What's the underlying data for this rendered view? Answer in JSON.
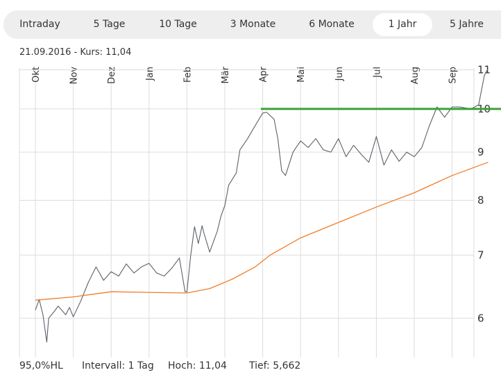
{
  "tabs": [
    {
      "label": "Intraday",
      "active": false
    },
    {
      "label": "5 Tage",
      "active": false
    },
    {
      "label": "10 Tage",
      "active": false
    },
    {
      "label": "3 Monate",
      "active": false
    },
    {
      "label": "6 Monate",
      "active": false
    },
    {
      "label": "1 Jahr",
      "active": true
    },
    {
      "label": "5 Jahre",
      "active": false
    }
  ],
  "info_line": "21.09.2016  -  Kurs: 11,04",
  "footer": {
    "hl": "95,0%HL",
    "interval": "Intervall: 1 Tag",
    "hoch": "Hoch:  11,04",
    "tief": "Tief:  5,662"
  },
  "colors": {
    "price_line": "#5a6068",
    "moving_average": "#f07d28",
    "resistance_line": "#3aa03a",
    "grid": "#dddddd",
    "tabbar_bg": "#eeeeef"
  },
  "chart_data": {
    "type": "line",
    "x_ticks": [
      "Okt",
      "Nov",
      "Dez",
      "Jan",
      "Feb",
      "Mär",
      "Apr",
      "Mai",
      "Jun",
      "Jul",
      "Aug",
      "Sep"
    ],
    "y_ticks": [
      6,
      7,
      8,
      9,
      10,
      11
    ],
    "y_scale": "log",
    "ylim": [
      5.45,
      11.05
    ],
    "grid": true,
    "series": [
      {
        "role": "price",
        "points": [
          [
            0,
            6.12
          ],
          [
            0.1,
            6.28
          ],
          [
            0.2,
            6.05
          ],
          [
            0.3,
            5.66
          ],
          [
            0.35,
            6.0
          ],
          [
            0.5,
            6.1
          ],
          [
            0.6,
            6.18
          ],
          [
            0.8,
            6.05
          ],
          [
            0.9,
            6.16
          ],
          [
            1.0,
            6.02
          ],
          [
            1.2,
            6.26
          ],
          [
            1.4,
            6.55
          ],
          [
            1.6,
            6.8
          ],
          [
            1.8,
            6.58
          ],
          [
            2.0,
            6.72
          ],
          [
            2.2,
            6.65
          ],
          [
            2.4,
            6.85
          ],
          [
            2.6,
            6.7
          ],
          [
            2.8,
            6.8
          ],
          [
            3.0,
            6.86
          ],
          [
            3.2,
            6.7
          ],
          [
            3.4,
            6.65
          ],
          [
            3.6,
            6.78
          ],
          [
            3.8,
            6.95
          ],
          [
            3.95,
            6.4
          ],
          [
            4.0,
            6.4
          ],
          [
            4.1,
            7.0
          ],
          [
            4.2,
            7.5
          ],
          [
            4.3,
            7.2
          ],
          [
            4.4,
            7.52
          ],
          [
            4.45,
            7.38
          ],
          [
            4.6,
            7.05
          ],
          [
            4.8,
            7.42
          ],
          [
            4.9,
            7.7
          ],
          [
            5.0,
            7.9
          ],
          [
            5.1,
            8.3
          ],
          [
            5.3,
            8.55
          ],
          [
            5.4,
            9.05
          ],
          [
            5.6,
            9.3
          ],
          [
            5.8,
            9.6
          ],
          [
            6.0,
            9.9
          ],
          [
            6.1,
            9.92
          ],
          [
            6.3,
            9.75
          ],
          [
            6.4,
            9.3
          ],
          [
            6.5,
            8.6
          ],
          [
            6.6,
            8.5
          ],
          [
            6.8,
            9.0
          ],
          [
            7.0,
            9.25
          ],
          [
            7.2,
            9.1
          ],
          [
            7.4,
            9.3
          ],
          [
            7.6,
            9.05
          ],
          [
            7.8,
            9.0
          ],
          [
            8.0,
            9.3
          ],
          [
            8.2,
            8.9
          ],
          [
            8.4,
            9.15
          ],
          [
            8.6,
            8.95
          ],
          [
            8.8,
            8.78
          ],
          [
            9.0,
            9.35
          ],
          [
            9.2,
            8.72
          ],
          [
            9.4,
            9.05
          ],
          [
            9.6,
            8.8
          ],
          [
            9.8,
            9.0
          ],
          [
            10.0,
            8.9
          ],
          [
            10.2,
            9.1
          ],
          [
            10.4,
            9.6
          ],
          [
            10.6,
            10.05
          ],
          [
            10.8,
            9.8
          ],
          [
            11.0,
            10.05
          ],
          [
            11.2,
            10.05
          ],
          [
            11.5,
            10.0
          ],
          [
            11.7,
            10.1
          ],
          [
            11.85,
            10.85
          ],
          [
            11.95,
            11.04
          ]
        ]
      },
      {
        "role": "moving-average",
        "points": [
          [
            0,
            6.27
          ],
          [
            1.0,
            6.32
          ],
          [
            2.0,
            6.4
          ],
          [
            3.0,
            6.39
          ],
          [
            4.0,
            6.38
          ],
          [
            4.6,
            6.45
          ],
          [
            5.2,
            6.6
          ],
          [
            5.8,
            6.8
          ],
          [
            6.2,
            7.0
          ],
          [
            7.0,
            7.3
          ],
          [
            8.0,
            7.58
          ],
          [
            9.0,
            7.87
          ],
          [
            10.0,
            8.15
          ],
          [
            11.0,
            8.5
          ],
          [
            11.95,
            8.78
          ]
        ]
      },
      {
        "role": "resistance",
        "points": [
          [
            5.95,
            10.0
          ],
          [
            12.4,
            10.0
          ]
        ]
      }
    ]
  }
}
